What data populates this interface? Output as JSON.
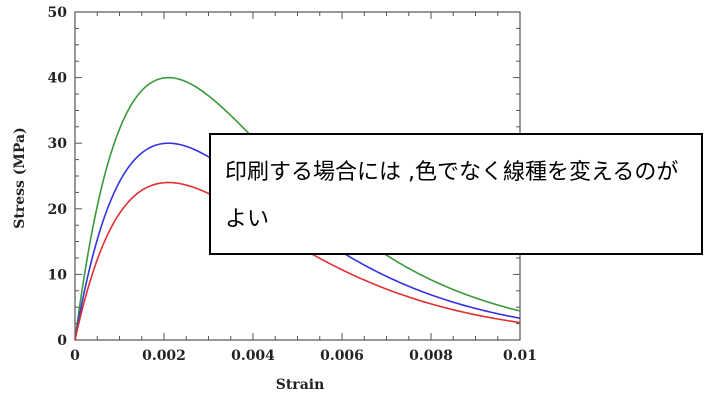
{
  "chart_data": {
    "type": "line",
    "title": "",
    "xlabel": "Strain",
    "ylabel": "Stress (MPa)",
    "xlim": [
      0,
      0.01
    ],
    "ylim": [
      0,
      50
    ],
    "xticks": [
      "0",
      "0.002",
      "0.004",
      "0.006",
      "0.008",
      "0.01"
    ],
    "yticks": [
      "0",
      "10",
      "20",
      "30",
      "40",
      "50"
    ],
    "grid": false,
    "legend": "none",
    "x": [
      0,
      0.0005,
      0.001,
      0.0015,
      0.002,
      0.0025,
      0.003,
      0.004,
      0.005,
      0.006,
      0.007,
      0.008,
      0.009,
      0.01
    ],
    "series": [
      {
        "color": "#3a9a3a",
        "peak": 40,
        "values": [
          0,
          21.8,
          33.3,
          38.5,
          40.0,
          39.5,
          37.8,
          32.3,
          25.9,
          19.8,
          14.5,
          10.3,
          7.1,
          4.8
        ]
      },
      {
        "color": "#3333e0",
        "peak": 30,
        "values": [
          0,
          16.4,
          25.0,
          28.8,
          30.0,
          29.6,
          28.4,
          24.2,
          19.4,
          14.9,
          10.9,
          7.7,
          5.3,
          3.6
        ]
      },
      {
        "color": "#e03030",
        "peak": 24,
        "values": [
          0,
          13.1,
          20.0,
          23.1,
          24.0,
          23.7,
          22.7,
          19.4,
          15.5,
          11.9,
          8.7,
          6.2,
          4.2,
          2.9
        ]
      }
    ]
  },
  "callout": {
    "text": "印刷する場合には ,色でなく線種を変えるのがよい"
  }
}
